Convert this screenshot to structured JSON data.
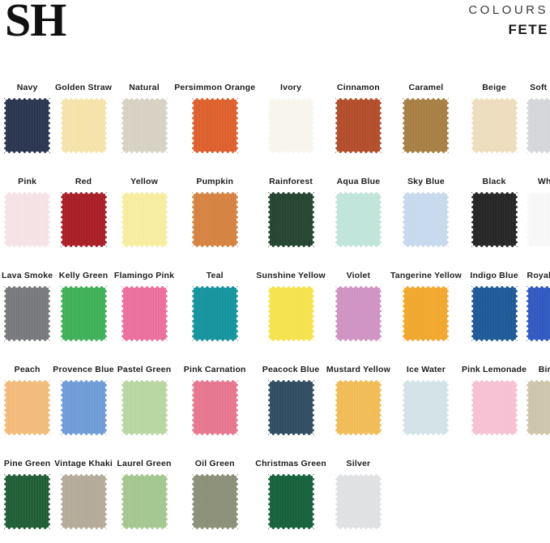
{
  "header": {
    "logo": "SH",
    "collection_label": "COLOURS",
    "collection_name": "FETE"
  },
  "palette": {
    "swatches": [
      {
        "name": "Navy",
        "hex": "#28334f"
      },
      {
        "name": "Golden Straw",
        "hex": "#f7e6ab"
      },
      {
        "name": "Natural",
        "hex": "#d8d3c5"
      },
      {
        "name": "Persimmon Orange",
        "hex": "#df5f2b"
      },
      {
        "name": "Ivory",
        "hex": "#faf8ef"
      },
      {
        "name": "Cinnamon",
        "hex": "#b34b27"
      },
      {
        "name": "Caramel",
        "hex": "#a87e42"
      },
      {
        "name": "Beige",
        "hex": "#f0dfbf"
      },
      {
        "name": "Soft Grey",
        "hex": "#d6d8db"
      },
      {
        "name": "Pink",
        "hex": "#f8e4e8"
      },
      {
        "name": "Red",
        "hex": "#aa1b24"
      },
      {
        "name": "Yellow",
        "hex": "#faefa1"
      },
      {
        "name": "Pumpkin",
        "hex": "#d8823f"
      },
      {
        "name": "Rainforest",
        "hex": "#22432e"
      },
      {
        "name": "Aqua Blue",
        "hex": "#c2e7dc"
      },
      {
        "name": "Sky Blue",
        "hex": "#c9dbef"
      },
      {
        "name": "Black",
        "hex": "#232323"
      },
      {
        "name": "White",
        "hex": "#fafafa"
      },
      {
        "name": "Lava Smoke",
        "hex": "#77787b"
      },
      {
        "name": "Kelly Green",
        "hex": "#3db156"
      },
      {
        "name": "Flamingo Pink",
        "hex": "#ee6f9e"
      },
      {
        "name": "Teal",
        "hex": "#12949e"
      },
      {
        "name": "Sunshine Yellow",
        "hex": "#f8e44c"
      },
      {
        "name": "Violet",
        "hex": "#d293c4"
      },
      {
        "name": "Tangerine Yellow",
        "hex": "#f4a82b"
      },
      {
        "name": "Indigo Blue",
        "hex": "#1c5897"
      },
      {
        "name": "Royal Blue",
        "hex": "#2e58c2"
      },
      {
        "name": "Peach",
        "hex": "#f5bc7a"
      },
      {
        "name": "Provence Blue",
        "hex": "#6f9cd9"
      },
      {
        "name": "Pastel Green",
        "hex": "#b9d8a2"
      },
      {
        "name": "Pink Carnation",
        "hex": "#e97690"
      },
      {
        "name": "Peacock Blue",
        "hex": "#2e4b60"
      },
      {
        "name": "Mustard Yellow",
        "hex": "#f4bd55"
      },
      {
        "name": "Ice Water",
        "hex": "#d5e4ea"
      },
      {
        "name": "Pink Lemonade",
        "hex": "#f9c3d5"
      },
      {
        "name": "Birch",
        "hex": "#cfc7ac"
      },
      {
        "name": "Pine Green",
        "hex": "#1e5c33"
      },
      {
        "name": "Vintage Khaki",
        "hex": "#b5ab99"
      },
      {
        "name": "Laurel Green",
        "hex": "#a5c88f"
      },
      {
        "name": "Oil Green",
        "hex": "#8b9078"
      },
      {
        "name": "Christmas Green",
        "hex": "#14603a"
      },
      {
        "name": "Silver",
        "hex": "#e2e3e5"
      }
    ]
  }
}
